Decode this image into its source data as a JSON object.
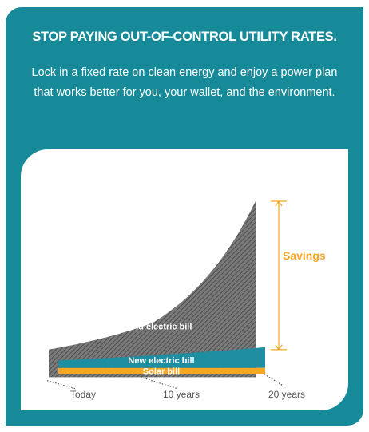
{
  "header": {
    "headline": "STOP PAYING OUT-OF-CONTROL UTILITY RATES.",
    "subhead": "Lock in a fixed rate on clean energy and enjoy a power plan that works better for you, your wallet, and the environment."
  },
  "colors": {
    "background": "#168a99",
    "old_bill": "#6b6b6b",
    "new_bill": "#1f8ea3",
    "solar_bill": "#f5a623",
    "savings": "#f5a623"
  },
  "chart_data": {
    "type": "area",
    "categories": [
      "Today",
      "10 years",
      "20 years"
    ],
    "series": [
      {
        "name": "Old electric bill",
        "values": [
          42,
          88,
          300
        ]
      },
      {
        "name": "New electric bill",
        "values": [
          23,
          33,
          46
        ]
      },
      {
        "name": "Solar bill",
        "values": [
          10,
          10,
          10
        ]
      }
    ],
    "annotations": [
      {
        "text": "Savings",
        "from_series": "New electric bill",
        "to_series": "Old electric bill",
        "at": "20 years"
      }
    ],
    "ylim": [
      -6,
      325
    ],
    "xlabel": "",
    "ylabel": "",
    "grid": false,
    "legend": "inline labels"
  }
}
